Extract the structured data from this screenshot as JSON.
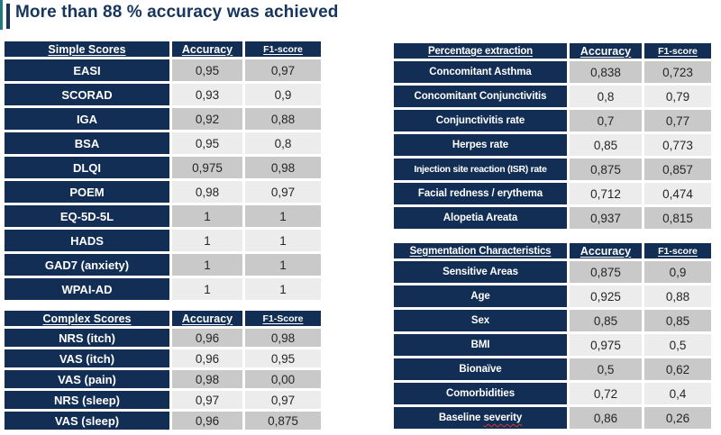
{
  "title": "More than 88 % accuracy was achieved",
  "colors": {
    "navy": "#132e54",
    "title": "#17365d",
    "teal": "#1f7a82",
    "cell_dark": "#c9c9c9",
    "cell_light": "#ececec",
    "value_text": "#262626",
    "squiggle_red": "#e0352b"
  },
  "tables": [
    {
      "name": "simple-scores",
      "header": [
        "Simple Scores",
        "Accuracy",
        "F1-score"
      ],
      "rows": [
        [
          "EASI",
          "0,95",
          "0,97"
        ],
        [
          "SCORAD",
          "0,93",
          "0,9"
        ],
        [
          "IGA",
          "0,92",
          "0,88"
        ],
        [
          "BSA",
          "0,95",
          "0,8"
        ],
        [
          "DLQI",
          "0,975",
          "0,98"
        ],
        [
          "POEM",
          "0,98",
          "0,97"
        ],
        [
          "EQ-5D-5L",
          "1",
          "1"
        ],
        [
          "HADS",
          "1",
          "1"
        ],
        [
          "GAD7 (anxiety)",
          "1",
          "1"
        ],
        [
          "WPAI-AD",
          "1",
          "1"
        ]
      ]
    },
    {
      "name": "complex-scores",
      "header": [
        "Complex Scores",
        "Accuracy",
        "F1-Score"
      ],
      "rows": [
        [
          "NRS (itch)",
          "0,96",
          "0,98"
        ],
        [
          "VAS (itch)",
          "0,96",
          "0,95"
        ],
        [
          "VAS (pain)",
          "0,98",
          "0,00"
        ],
        [
          "NRS (sleep)",
          "0,97",
          "0,97"
        ],
        [
          "VAS (sleep)",
          "0,96",
          "0,875"
        ]
      ]
    },
    {
      "name": "percentage-extraction",
      "header": [
        "Percentage extraction",
        "Accuracy",
        "F1-score"
      ],
      "rows": [
        [
          "Concomitant Asthma",
          "0,838",
          "0,723"
        ],
        [
          "Concomitant Conjunctivitis",
          "0,8",
          "0,79"
        ],
        [
          "Conjunctivitis rate",
          "0,7",
          "0,77"
        ],
        [
          "Herpes rate",
          "0,85",
          "0,773"
        ],
        [
          "Injection site reaction (ISR) rate",
          "0,875",
          "0,857"
        ],
        [
          "Facial redness / erythema",
          "0,712",
          "0,474"
        ],
        [
          "Alopetia Areata",
          "0,937",
          "0,815"
        ]
      ]
    },
    {
      "name": "segmentation-characteristics",
      "header": [
        "Segmentation Characteristics",
        "Accuracy",
        "F1-score"
      ],
      "rows": [
        [
          "Sensitive Areas",
          "0,875",
          "0,9"
        ],
        [
          "Age",
          "0,925",
          "0,88"
        ],
        [
          "Sex",
          "0,85",
          "0,85"
        ],
        [
          "BMI",
          "0,975",
          "0,5"
        ],
        [
          "Bionaïve",
          "0,5",
          "0,62"
        ],
        [
          "Comorbidities",
          "0,72",
          "0,4"
        ],
        [
          "Baseline severity",
          "0,86",
          "0,26"
        ]
      ],
      "squiggle": {
        "row": 6,
        "word": "severity"
      }
    }
  ]
}
